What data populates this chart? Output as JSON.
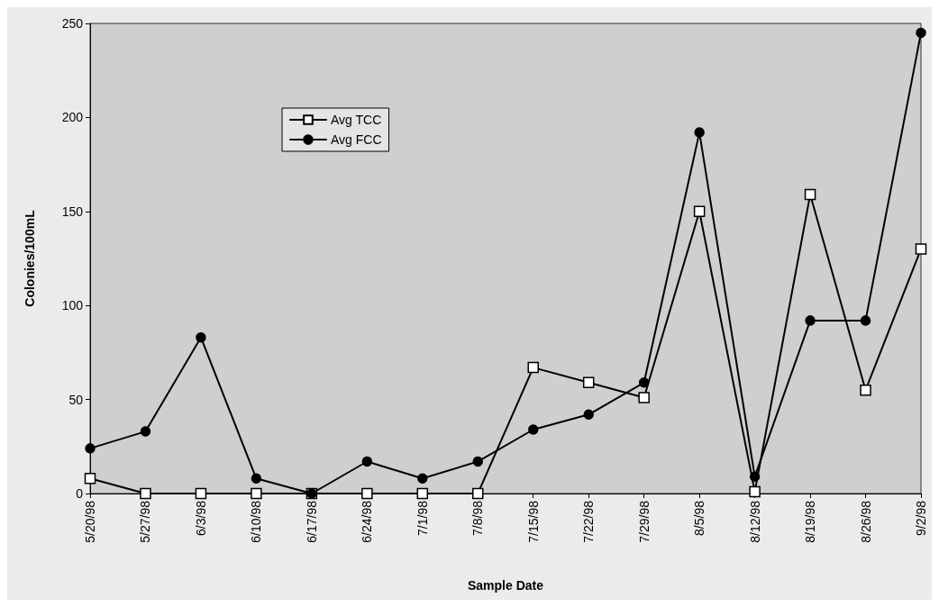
{
  "chart_data": {
    "type": "line",
    "xlabel": "Sample Date",
    "ylabel": "Colonies/100mL",
    "categories": [
      "5/20/98",
      "5/27/98",
      "6/3/98",
      "6/10/98",
      "6/17/98",
      "6/24/98",
      "7/1/98",
      "7/8/98",
      "7/15/98",
      "7/22/98",
      "7/29/98",
      "8/5/98",
      "8/12/98",
      "8/19/98",
      "8/26/98",
      "9/2/98"
    ],
    "series": [
      {
        "name": "Avg TCC",
        "color": "#000000",
        "marker": "square",
        "values": [
          8,
          0,
          0,
          0,
          0,
          0,
          0,
          0,
          67,
          59,
          51,
          150,
          1,
          159,
          55,
          130
        ]
      },
      {
        "name": "Avg FCC",
        "color": "#000000",
        "marker": "circle",
        "values": [
          24,
          33,
          83,
          8,
          0,
          17,
          8,
          17,
          34,
          42,
          59,
          192,
          9,
          92,
          92,
          245
        ]
      }
    ],
    "ylim": [
      0,
      250
    ],
    "yticks": [
      0,
      50,
      100,
      150,
      200,
      250
    ],
    "grid": false,
    "legend": "top left",
    "line_style": "solid"
  }
}
